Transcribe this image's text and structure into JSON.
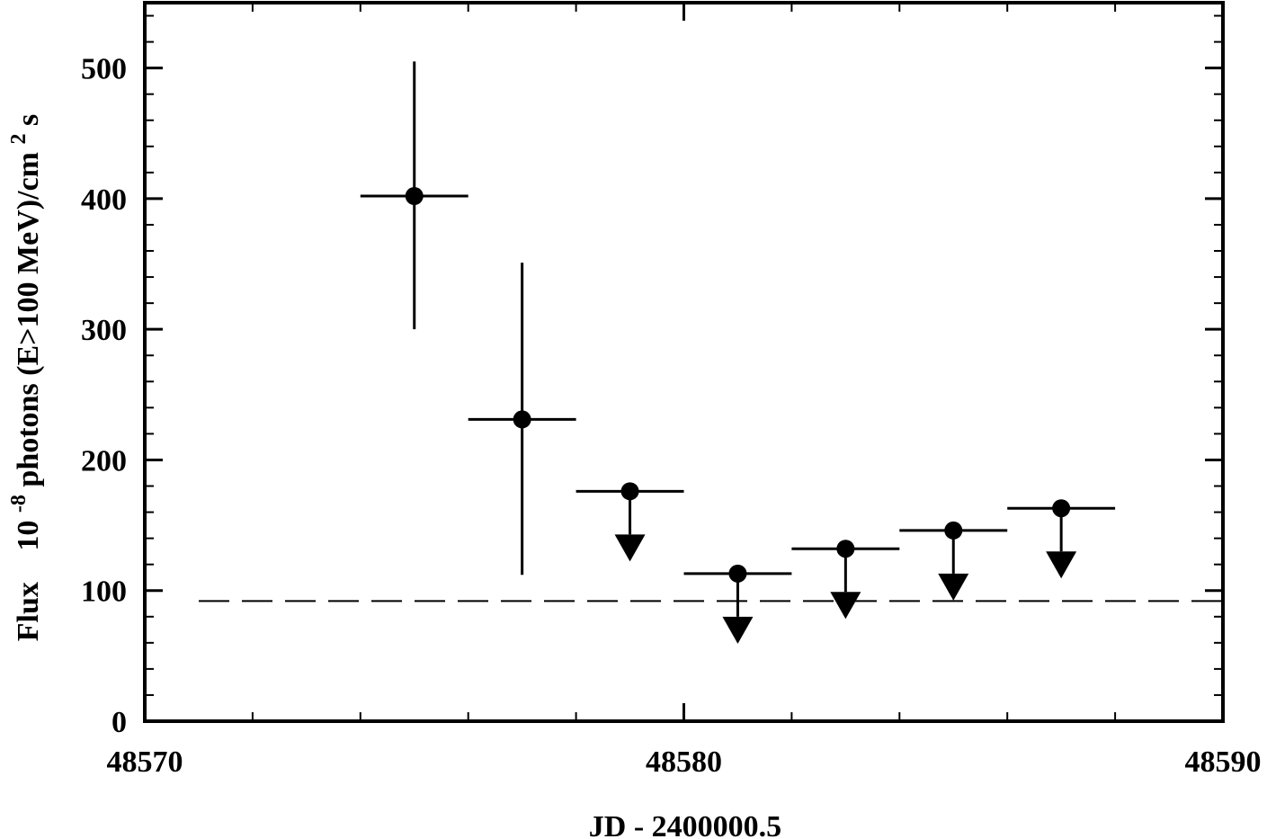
{
  "chart_data": {
    "type": "scatter",
    "title": "",
    "xlabel": "JD - 2400000.5",
    "ylabel": {
      "prefix": "Flux",
      "unit_base": "10",
      "unit_exp": "-8",
      "unit_text": "photons (E>100 MeV)/cm",
      "unit_exp2": "2",
      "unit_end": " s"
    },
    "xlim": [
      48570,
      48590
    ],
    "ylim": [
      0,
      550
    ],
    "x_ticks": [
      48570,
      48580,
      48590
    ],
    "y_ticks": [
      0,
      100,
      200,
      300,
      400,
      500
    ],
    "x_tick_labels": [
      "48570",
      "48580",
      "48590"
    ],
    "y_tick_labels": [
      "0",
      "100",
      "200",
      "300",
      "400",
      "500"
    ],
    "x_minor_step": 2,
    "y_minor_step": 20,
    "grid": false,
    "reference_line": {
      "y": 92,
      "style": "dashed"
    },
    "points": [
      {
        "x": 48575.0,
        "x_lo": 48574.0,
        "x_hi": 48576.0,
        "y": 402,
        "y_lo": 300,
        "y_hi": 505,
        "upper_limit": false
      },
      {
        "x": 48577.0,
        "x_lo": 48576.0,
        "x_hi": 48578.0,
        "y": 231,
        "y_lo": 112,
        "y_hi": 351,
        "upper_limit": false
      },
      {
        "x": 48579.0,
        "x_lo": 48578.0,
        "x_hi": 48580.0,
        "y": 176,
        "upper_limit": true
      },
      {
        "x": 48581.0,
        "x_lo": 48580.0,
        "x_hi": 48582.0,
        "y": 113,
        "upper_limit": true
      },
      {
        "x": 48583.0,
        "x_lo": 48582.0,
        "x_hi": 48584.0,
        "y": 132,
        "upper_limit": true
      },
      {
        "x": 48585.0,
        "x_lo": 48584.0,
        "x_hi": 48586.0,
        "y": 146,
        "upper_limit": true
      },
      {
        "x": 48587.0,
        "x_lo": 48586.0,
        "x_hi": 48588.0,
        "y": 163,
        "upper_limit": true
      }
    ]
  }
}
